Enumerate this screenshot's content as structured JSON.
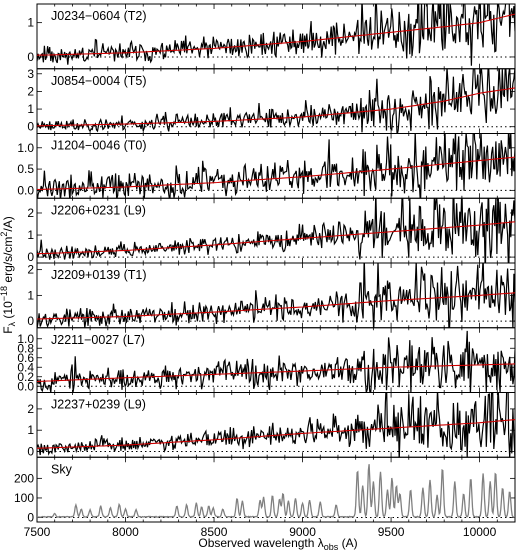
{
  "chart_data": {
    "type": "line",
    "xlabel": "Observed wavelength λ_obs (A)",
    "xlabel_parts": {
      "main": "Observed wavelength λ",
      "sub": "obs",
      "unit": " (A)"
    },
    "ylabel": "Fλ (10^-18 erg/s/cm^2/A)",
    "ylabel_parts": {
      "F": "F",
      "lam": "λ",
      "mid": " (10",
      "exp": "−18",
      "units": " erg/s/cm",
      "sq": "2",
      "tail": "/A)"
    },
    "xlim": [
      7500,
      10200
    ],
    "xticks": [
      7500,
      8000,
      8500,
      9000,
      9500,
      10000
    ],
    "panels": [
      {
        "name": "J0234−0604 (T2)",
        "ylim": [
          -0.3,
          1.5
        ],
        "yticks": [
          0,
          1
        ],
        "model": {
          "x": [
            7500,
            8000,
            8500,
            9000,
            9500,
            9800,
            10000,
            10200
          ],
          "y": [
            0.05,
            0.12,
            0.25,
            0.45,
            0.72,
            0.88,
            1.0,
            1.25
          ]
        },
        "noise_low": 0.2,
        "noise_high": 0.5,
        "seed": 11
      },
      {
        "name": "J0854−0004 (T5)",
        "ylim": [
          -0.3,
          3.2
        ],
        "yticks": [
          0,
          1,
          2,
          3
        ],
        "model": {
          "x": [
            7500,
            8000,
            8500,
            9000,
            9500,
            9800,
            10000,
            10200
          ],
          "y": [
            0.05,
            0.15,
            0.3,
            0.55,
            1.0,
            1.45,
            1.9,
            2.2
          ]
        },
        "noise_low": 0.25,
        "noise_high": 0.8,
        "seed": 23
      },
      {
        "name": "J1204−0046 (T0)",
        "ylim": [
          -0.15,
          1.3
        ],
        "yticks": [
          0,
          0.5,
          1
        ],
        "model": {
          "x": [
            7500,
            8000,
            8500,
            9000,
            9500,
            10000,
            10200
          ],
          "y": [
            0.02,
            0.08,
            0.18,
            0.32,
            0.5,
            0.7,
            0.78
          ]
        },
        "noise_low": 0.22,
        "noise_high": 0.35,
        "seed": 37
      },
      {
        "name": "J2206+0231 (L9)",
        "ylim": [
          -0.2,
          2.6
        ],
        "yticks": [
          0,
          1,
          2
        ],
        "model": {
          "x": [
            7500,
            8000,
            8500,
            9000,
            9500,
            10000,
            10200
          ],
          "y": [
            0.15,
            0.3,
            0.55,
            0.85,
            1.15,
            1.45,
            1.6
          ]
        },
        "noise_low": 0.2,
        "noise_high": 0.85,
        "seed": 41
      },
      {
        "name": "J2209+0139 (T1)",
        "ylim": [
          -0.2,
          2.2
        ],
        "yticks": [
          0,
          1,
          2
        ],
        "model": {
          "x": [
            7500,
            8000,
            8500,
            9000,
            9500,
            10000,
            10200
          ],
          "y": [
            0.08,
            0.18,
            0.35,
            0.55,
            0.8,
            1.0,
            1.1
          ]
        },
        "noise_low": 0.25,
        "noise_high": 0.6,
        "seed": 53
      },
      {
        "name": "J2211−0027 (L7)",
        "ylim": [
          -0.1,
          1.2
        ],
        "yticks": [
          0.0,
          0.2,
          0.4,
          0.6,
          0.8,
          1.0
        ],
        "model": {
          "x": [
            7500,
            8000,
            8500,
            9000,
            9500,
            10000,
            10200
          ],
          "y": [
            0.1,
            0.18,
            0.25,
            0.32,
            0.4,
            0.45,
            0.47
          ]
        },
        "noise_low": 0.16,
        "noise_high": 0.3,
        "seed": 67
      },
      {
        "name": "J2237+0239 (L9)",
        "ylim": [
          -0.2,
          2.7
        ],
        "yticks": [
          0,
          1,
          2
        ],
        "model": {
          "x": [
            7500,
            8000,
            8500,
            9000,
            9500,
            10000,
            10200
          ],
          "y": [
            0.15,
            0.3,
            0.55,
            0.85,
            1.1,
            1.35,
            1.5
          ]
        },
        "noise_low": 0.22,
        "noise_high": 0.9,
        "seed": 79
      },
      {
        "name": "Sky",
        "ylim": [
          -15,
          300
        ],
        "yticks": [
          0,
          100,
          200
        ],
        "sky": true,
        "sky_lines": [
          [
            7600,
            18
          ],
          [
            7720,
            60
          ],
          [
            7750,
            40
          ],
          [
            7800,
            35
          ],
          [
            7860,
            55
          ],
          [
            7915,
            45
          ],
          [
            7965,
            65
          ],
          [
            8000,
            40
          ],
          [
            8060,
            35
          ],
          [
            8290,
            55
          ],
          [
            8345,
            60
          ],
          [
            8400,
            70
          ],
          [
            8430,
            50
          ],
          [
            8470,
            55
          ],
          [
            8495,
            45
          ],
          [
            8550,
            40
          ],
          [
            8630,
            95
          ],
          [
            8660,
            80
          ],
          [
            8760,
            85
          ],
          [
            8780,
            100
          ],
          [
            8830,
            110
          ],
          [
            8870,
            90
          ],
          [
            8890,
            120
          ],
          [
            8920,
            80
          ],
          [
            8960,
            95
          ],
          [
            9000,
            70
          ],
          [
            9040,
            85
          ],
          [
            9100,
            75
          ],
          [
            9190,
            60
          ],
          [
            9310,
            240
          ],
          [
            9340,
            160
          ],
          [
            9375,
            270
          ],
          [
            9400,
            180
          ],
          [
            9440,
            230
          ],
          [
            9480,
            140
          ],
          [
            9505,
            200
          ],
          [
            9530,
            160
          ],
          [
            9550,
            120
          ],
          [
            9610,
            140
          ],
          [
            9680,
            150
          ],
          [
            9720,
            190
          ],
          [
            9760,
            110
          ],
          [
            9790,
            250
          ],
          [
            9860,
            180
          ],
          [
            9910,
            120
          ],
          [
            9950,
            200
          ],
          [
            10020,
            220
          ],
          [
            10060,
            180
          ],
          [
            10090,
            230
          ],
          [
            10130,
            150
          ],
          [
            10170,
            130
          ]
        ],
        "seed": 97
      }
    ]
  },
  "colors": {
    "data": "#000000",
    "model": "#cc0000",
    "sky": "#808080"
  }
}
